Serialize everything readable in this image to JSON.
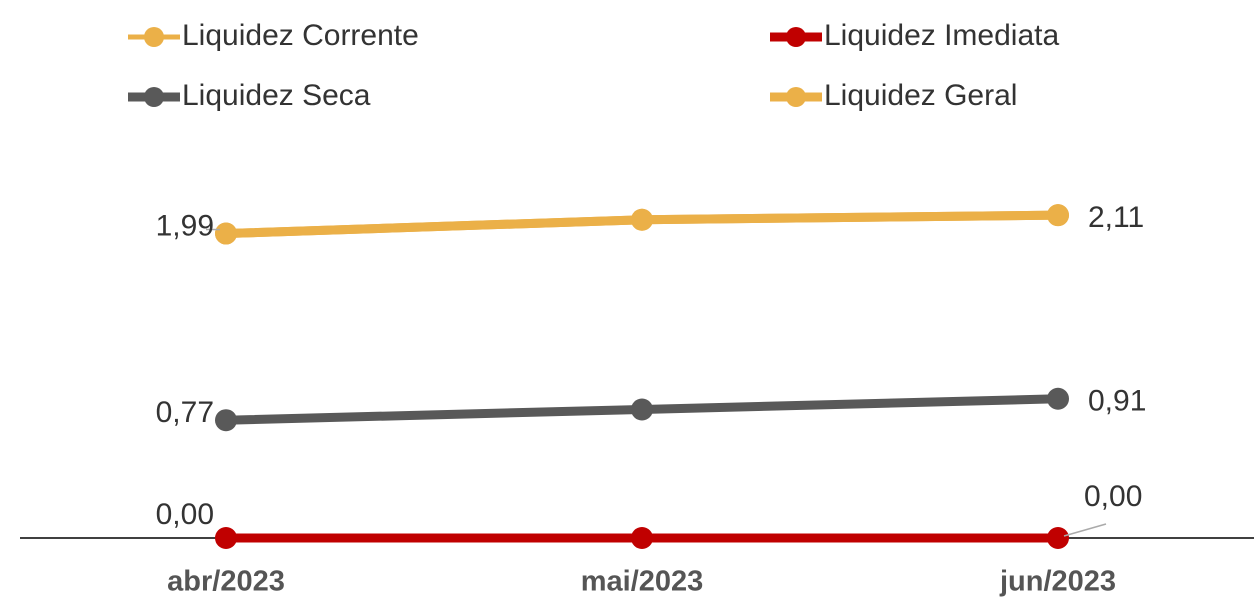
{
  "chart_data": {
    "type": "line",
    "categories": [
      "abr/2023",
      "mai/2023",
      "jun/2023"
    ],
    "series": [
      {
        "name": "Liquidez Corrente",
        "color": "#ebb048",
        "values": [
          1.99,
          2.08,
          2.11
        ],
        "value_labels": [
          null,
          null,
          null
        ]
      },
      {
        "name": "Liquidez Imediata",
        "color": "#c00000",
        "values": [
          0,
          0,
          0
        ],
        "value_labels": [
          "0,00",
          null,
          "0,00"
        ]
      },
      {
        "name": "Liquidez Seca",
        "color": "#595959",
        "values": [
          0.77,
          0.84,
          0.91
        ],
        "value_labels": [
          "0,77",
          null,
          "0,91"
        ]
      },
      {
        "name": "Liquidez Geral",
        "color": "#ebb048",
        "values": [
          1.99,
          2.08,
          2.11
        ],
        "value_labels": [
          "1,99",
          null,
          "2,11"
        ]
      }
    ],
    "ylim": [
      0,
      2.5
    ]
  }
}
